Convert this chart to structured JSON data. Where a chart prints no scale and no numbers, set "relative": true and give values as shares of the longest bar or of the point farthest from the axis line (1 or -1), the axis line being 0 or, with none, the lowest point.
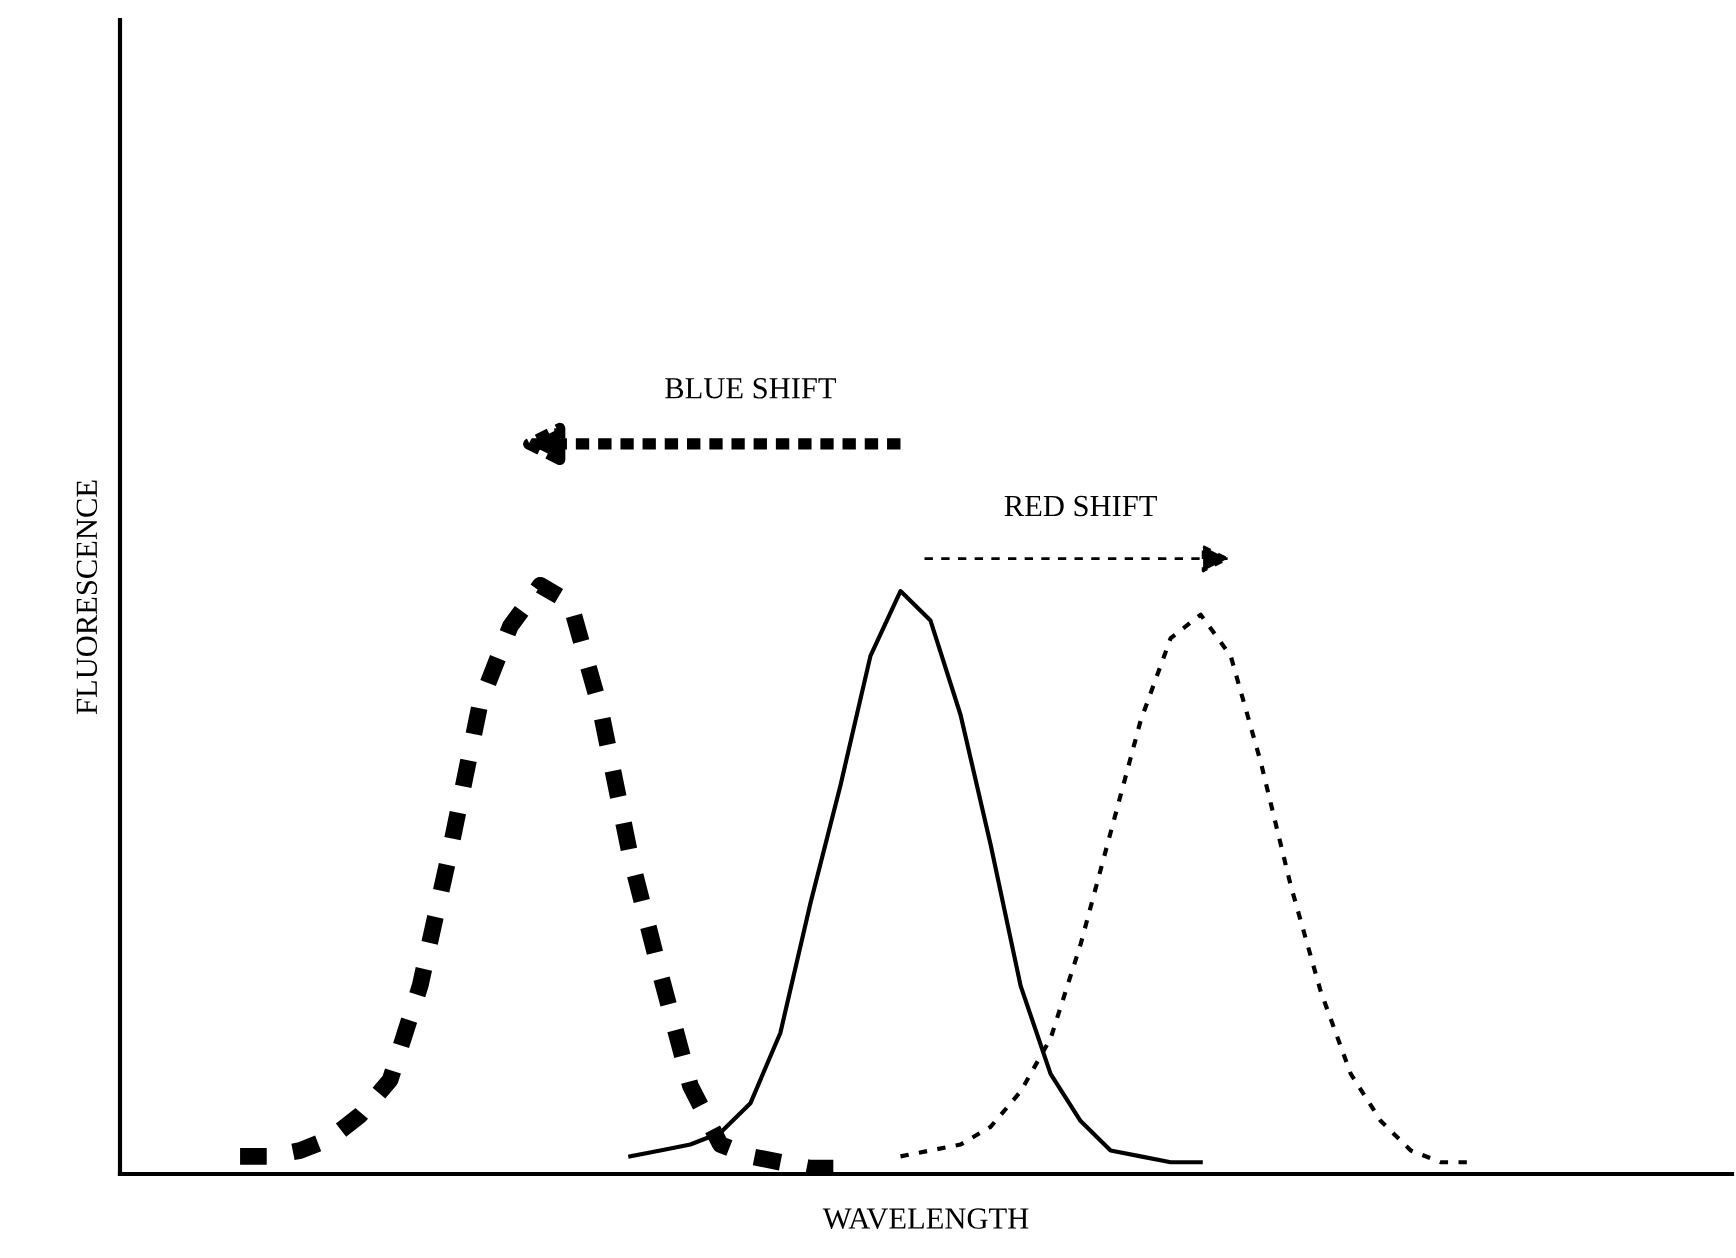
{
  "chart_data": {
    "type": "line",
    "relative": true,
    "xlabel": "WAVELENGTH",
    "ylabel": "FLUORESCENCE",
    "tick_labels": false,
    "legend": false,
    "marker": "none",
    "annotations": [
      "BLUE SHIFT",
      "RED SHIFT"
    ],
    "categories": [
      null,
      null,
      null,
      null,
      null,
      null,
      null,
      null,
      null,
      null,
      null,
      null,
      null,
      null,
      null,
      null,
      null,
      null,
      null,
      null,
      null,
      null,
      null,
      null,
      null,
      null,
      null,
      null,
      null,
      null,
      null,
      null,
      null,
      null,
      null,
      null,
      null,
      null,
      null,
      null,
      null,
      null
    ],
    "series": [
      {
        "color": "#000000",
        "line_style": "dashed",
        "values": [
          0.03,
          0.03,
          0.04,
          0.06,
          0.1,
          0.16,
          0.32,
          0.55,
          0.8,
          0.93,
          1.0,
          0.97,
          0.79,
          0.54,
          0.34,
          0.15,
          0.05,
          0.03,
          0.02,
          0.01,
          0.01,
          null,
          null,
          null,
          null,
          null,
          null,
          null,
          null,
          null,
          null,
          null,
          null,
          null,
          null,
          null,
          null,
          null,
          null,
          null,
          null,
          null
        ]
      },
      {
        "color": "#000000",
        "line_style": "solid",
        "values": [
          null,
          null,
          null,
          null,
          null,
          null,
          null,
          null,
          null,
          null,
          null,
          null,
          null,
          0.03,
          0.04,
          0.05,
          0.07,
          0.12,
          0.24,
          0.46,
          0.66,
          0.88,
          0.99,
          0.94,
          0.78,
          0.56,
          0.32,
          0.17,
          0.09,
          0.04,
          0.03,
          0.02,
          0.02,
          null,
          null,
          null,
          null,
          null,
          null,
          null,
          null,
          null
        ]
      },
      {
        "color": "#000000",
        "line_style": "dotted",
        "values": [
          null,
          null,
          null,
          null,
          null,
          null,
          null,
          null,
          null,
          null,
          null,
          null,
          null,
          null,
          null,
          null,
          null,
          null,
          null,
          null,
          null,
          null,
          0.03,
          0.04,
          0.05,
          0.08,
          0.14,
          0.23,
          0.39,
          0.58,
          0.77,
          0.91,
          0.95,
          0.88,
          0.7,
          0.49,
          0.31,
          0.17,
          0.09,
          0.04,
          0.02,
          0.02
        ]
      }
    ]
  }
}
